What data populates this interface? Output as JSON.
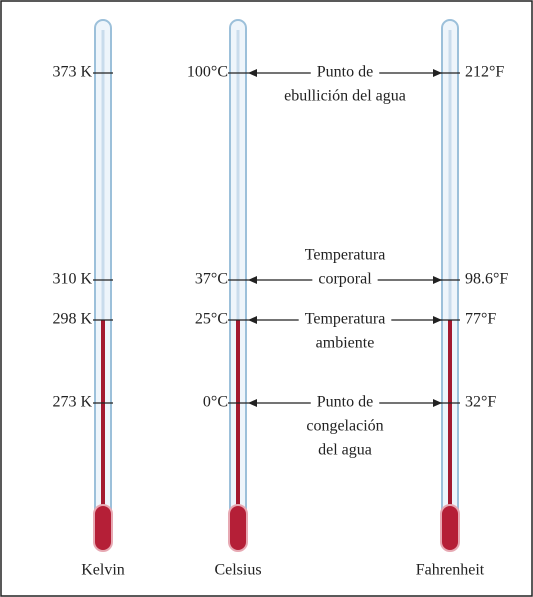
{
  "thermometers": [
    {
      "name": "Kelvin",
      "marks": [
        "373 K",
        "310 K",
        "298 K",
        "273 K"
      ]
    },
    {
      "name": "Celsius",
      "marks": [
        "100°C",
        "37°C",
        "25°C",
        "0°C"
      ]
    },
    {
      "name": "Fahrenheit",
      "marks": [
        "212°F",
        "98.6°F",
        "77°F",
        "32°F"
      ]
    }
  ],
  "points": [
    {
      "lines": [
        "Punto de",
        "ebullición del agua"
      ]
    },
    {
      "lines": [
        "Temperatura",
        "corporal"
      ]
    },
    {
      "lines": [
        "Temperatura",
        "ambiente"
      ]
    },
    {
      "lines": [
        "Punto de",
        "congelación",
        "del agua"
      ]
    }
  ]
}
